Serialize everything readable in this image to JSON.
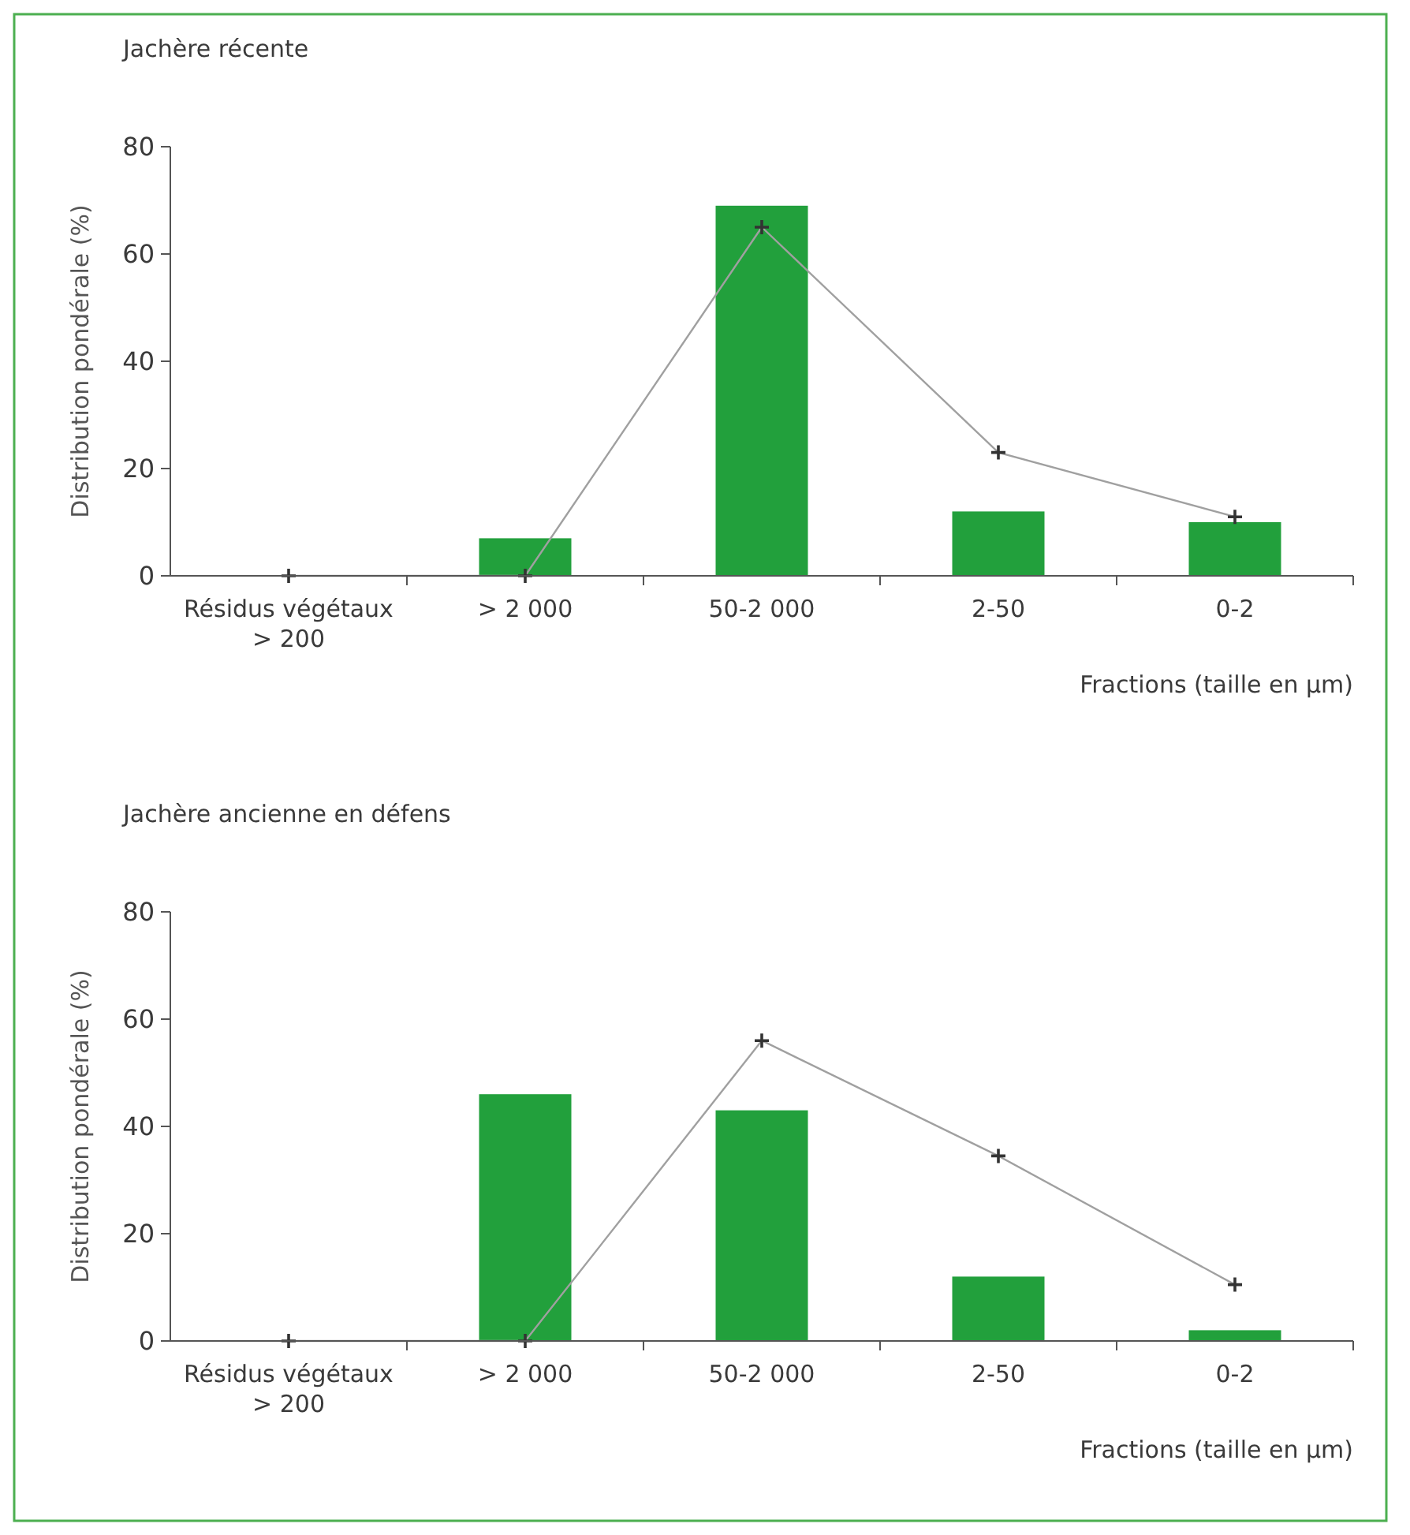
{
  "chart_data": [
    {
      "type": "bar",
      "title": "Jachère récente",
      "xlabel": "Fractions (taille en µm)",
      "ylabel": "Distribution pondérale (%)",
      "categories": [
        "Résidus végétaux\n> 200",
        "> 2 000",
        "50-2 000",
        "2-50",
        "0-2"
      ],
      "ylim": [
        0,
        80
      ],
      "yticks": [
        0,
        20,
        40,
        60,
        80
      ],
      "grid": false,
      "series": [
        {
          "color": "#22a03c",
          "values": [
            0,
            7,
            69,
            12,
            10
          ]
        },
        {
          "type": "line",
          "color": "#a0a0a0",
          "marker": "cross",
          "values": [
            0,
            0,
            65,
            23,
            11
          ]
        }
      ]
    },
    {
      "type": "bar",
      "title": "Jachère ancienne en défens",
      "xlabel": "Fractions (taille en µm)",
      "ylabel": "Distribution pondérale (%)",
      "categories": [
        "Résidus végétaux\n> 200",
        "> 2 000",
        "50-2 000",
        "2-50",
        "0-2"
      ],
      "ylim": [
        0,
        80
      ],
      "yticks": [
        0,
        20,
        40,
        60,
        80
      ],
      "grid": false,
      "series": [
        {
          "color": "#22a03c",
          "values": [
            0,
            46,
            43,
            12,
            2
          ]
        },
        {
          "type": "line",
          "color": "#a0a0a0",
          "marker": "cross",
          "values": [
            0,
            0,
            56,
            34.5,
            10.5
          ]
        }
      ]
    }
  ]
}
